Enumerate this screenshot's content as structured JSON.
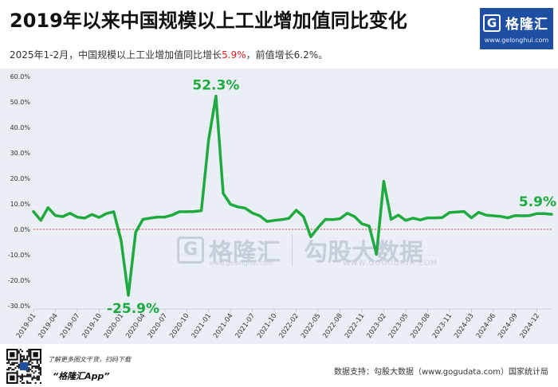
{
  "title": "2019年以来中国规模以上工业增加值同比变化",
  "subtitle": {
    "prefix": "2025年1-2月，中国规模以上工业增加值同比增长",
    "highlight": "5.9%",
    "suffix": "，前值增长6.2%。"
  },
  "brand": {
    "name": "格隆汇",
    "icon": "G",
    "site": "www.gelonghui.com"
  },
  "watermark": {
    "name": "格隆汇",
    "site": "www.gelonghui.com",
    "cn": "勾股大数据",
    "url": "WWW.GOGUDATA.COM"
  },
  "footer": {
    "tagline": "了解更多图文干货，扫码下载",
    "app": "“格隆汇App”",
    "source": "数据支持：勾股大数据（www.gogudata.com）国家统计局"
  },
  "colors": {
    "line": "#1faa3f",
    "zero_line": "#e04040",
    "highlight": "#e02020",
    "brand": "#1f4fa3",
    "chart_bg": "#eaeff5"
  },
  "chart_data": {
    "type": "line",
    "ylim": [
      -30,
      60
    ],
    "yticks": [
      "-30.0%",
      "-20.0%",
      "-10.0%",
      "0.0%",
      "10.0%",
      "20.0%",
      "30.0%",
      "40.0%",
      "50.0%",
      "60.0%"
    ],
    "ytick_values": [
      -30,
      -20,
      -10,
      0,
      10,
      20,
      30,
      40,
      50,
      60
    ],
    "xticks": [
      "2019-01",
      "2019-04",
      "2019-07",
      "2019-10",
      "2020-01",
      "2020-04",
      "2020-07",
      "2020-10",
      "2021-01",
      "2021-04",
      "2021-07",
      "2021-10",
      "2022-02",
      "2022-05",
      "2022-08",
      "2022-11",
      "2023-02",
      "2023-05",
      "2023-08",
      "2023-11",
      "2024-03",
      "2024-06",
      "2024-09",
      "2024-12"
    ],
    "xtick_index": [
      0,
      3,
      6,
      9,
      12,
      15,
      18,
      21,
      24,
      27,
      30,
      33,
      36,
      39,
      42,
      45,
      48,
      51,
      54,
      57,
      60,
      63,
      66,
      69
    ],
    "series": [
      {
        "values": [
          7.0,
          3.5,
          8.5,
          5.4,
          5.0,
          6.3,
          4.8,
          4.4,
          5.8,
          4.7,
          6.2,
          6.9,
          -4.3,
          -25.9,
          -1.1,
          3.9,
          4.4,
          4.8,
          4.8,
          5.6,
          6.9,
          6.9,
          7.0,
          7.3,
          35.1,
          52.3,
          14.1,
          9.8,
          8.8,
          8.3,
          6.4,
          5.3,
          3.1,
          3.5,
          3.8,
          4.3,
          7.5,
          5.0,
          -2.9,
          0.7,
          3.9,
          3.8,
          4.2,
          6.3,
          5.0,
          2.2,
          1.3,
          -9.8,
          18.8,
          3.9,
          5.6,
          3.5,
          4.4,
          3.7,
          4.5,
          4.5,
          4.6,
          6.6,
          6.8,
          7.0,
          4.5,
          6.7,
          5.6,
          5.3,
          5.1,
          4.5,
          5.4,
          5.3,
          5.4,
          6.2,
          6.2,
          5.9
        ]
      }
    ],
    "annotations": [
      {
        "index": 25,
        "text": "52.3%"
      },
      {
        "index": 13,
        "text": "-25.9%"
      },
      {
        "index": 71,
        "text": "5.9%"
      }
    ]
  }
}
